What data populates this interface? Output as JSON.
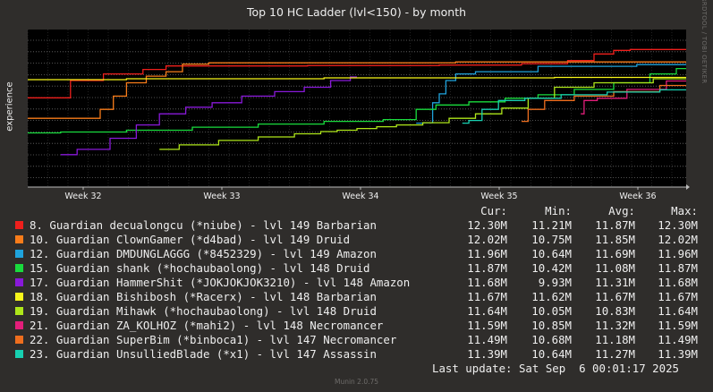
{
  "chart_data": {
    "type": "line",
    "title": "Top 10 HC Ladder (lvl<150) - by month",
    "ylabel": "experience",
    "side_label": "RRDTOOL / TOBI OETIKER",
    "x_ticks": [
      "Week 32",
      "Week 33",
      "Week 34",
      "Week 35",
      "Week 36"
    ],
    "x_range": [
      0,
      1
    ],
    "y_range": [
      9.2,
      12.75
    ],
    "grid": true,
    "legend_position": "bottom",
    "legend_headers": [
      "Cur:",
      "Min:",
      "Avg:",
      "Max:"
    ],
    "series": [
      {
        "name": "8. Guardian decualongcu (*niube) - lvl 149 Barbarian",
        "color": "#ee1f1c",
        "cur": "12.30M",
        "min": "11.21M",
        "avg": "11.87M",
        "max": "12.30M",
        "points": [
          [
            0,
            11.21
          ],
          [
            0.05,
            11.21
          ],
          [
            0.08,
            11.6
          ],
          [
            0.1,
            11.6
          ],
          [
            0.13,
            11.75
          ],
          [
            0.16,
            11.75
          ],
          [
            0.19,
            11.85
          ],
          [
            0.23,
            11.93
          ],
          [
            0.3,
            11.93
          ],
          [
            0.55,
            11.94
          ],
          [
            0.7,
            11.95
          ],
          [
            0.8,
            11.98
          ],
          [
            0.84,
            12.05
          ],
          [
            0.88,
            12.2
          ],
          [
            0.9,
            12.28
          ],
          [
            0.93,
            12.3
          ],
          [
            1,
            12.3
          ]
        ]
      },
      {
        "name": "10. Guardian ClownGamer (*d4bad) - lvl 149 Druid",
        "color": "#f87c1a",
        "cur": "12.02M",
        "min": "10.75M",
        "avg": "11.85M",
        "max": "12.02M",
        "points": [
          [
            0,
            10.75
          ],
          [
            0.1,
            10.75
          ],
          [
            0.12,
            10.95
          ],
          [
            0.14,
            11.25
          ],
          [
            0.16,
            11.55
          ],
          [
            0.2,
            11.7
          ],
          [
            0.22,
            11.8
          ],
          [
            0.25,
            11.97
          ],
          [
            0.3,
            12.0
          ],
          [
            1,
            12.02
          ]
        ]
      },
      {
        "name": "12. Guardian DMDUNGLAGGG (*8452329) - lvl 149 Amazon",
        "color": "#1fa3dc",
        "cur": "11.96M",
        "min": "10.64M",
        "avg": "11.69M",
        "max": "11.96M",
        "points": [
          [
            0.59,
            10.64
          ],
          [
            0.61,
            10.65
          ],
          [
            0.62,
            11.1
          ],
          [
            0.63,
            11.3
          ],
          [
            0.64,
            11.6
          ],
          [
            0.66,
            11.75
          ],
          [
            0.7,
            11.8
          ],
          [
            0.85,
            11.92
          ],
          [
            1,
            11.96
          ]
        ]
      },
      {
        "name": "15. Guardian shank (*hochaubaolong) - lvl 148 Druid",
        "color": "#19db3d",
        "cur": "11.87M",
        "min": "10.42M",
        "avg": "11.08M",
        "max": "11.87M",
        "points": [
          [
            0,
            10.42
          ],
          [
            0.1,
            10.44
          ],
          [
            0.2,
            10.48
          ],
          [
            0.3,
            10.55
          ],
          [
            0.4,
            10.62
          ],
          [
            0.5,
            10.68
          ],
          [
            0.58,
            10.72
          ],
          [
            0.6,
            10.95
          ],
          [
            0.64,
            11.05
          ],
          [
            0.7,
            11.12
          ],
          [
            0.75,
            11.2
          ],
          [
            0.8,
            11.28
          ],
          [
            0.86,
            11.4
          ],
          [
            0.92,
            11.55
          ],
          [
            0.97,
            11.75
          ],
          [
            1,
            11.87
          ]
        ]
      },
      {
        "name": "17. Guardian HammerShit (*JOKJOKJOK3210) - lvl 148 Amazon",
        "color": "#8919d9",
        "cur": "11.68M",
        "min": "9.93M",
        "avg": "11.31M",
        "max": "11.68M",
        "points": [
          [
            0.05,
            9.93
          ],
          [
            0.1,
            10.05
          ],
          [
            0.15,
            10.3
          ],
          [
            0.18,
            10.6
          ],
          [
            0.22,
            10.85
          ],
          [
            0.26,
            11.0
          ],
          [
            0.3,
            11.1
          ],
          [
            0.35,
            11.25
          ],
          [
            0.4,
            11.35
          ],
          [
            0.44,
            11.45
          ],
          [
            0.48,
            11.6
          ],
          [
            0.5,
            11.68
          ]
        ]
      },
      {
        "name": "18. Guardian Bishibosh (*Racerx) - lvl 148 Barbarian",
        "color": "#f7f51b",
        "cur": "11.67M",
        "min": "11.62M",
        "avg": "11.67M",
        "max": "11.67M",
        "points": [
          [
            0,
            11.62
          ],
          [
            0.3,
            11.64
          ],
          [
            0.6,
            11.66
          ],
          [
            1,
            11.67
          ]
        ]
      },
      {
        "name": "19. Guardian Mihawk (*hochaubaolong) - lvl 148 Druid",
        "color": "#aee61a",
        "cur": "11.64M",
        "min": "10.05M",
        "avg": "10.83M",
        "max": "11.64M",
        "points": [
          [
            0.2,
            10.05
          ],
          [
            0.26,
            10.15
          ],
          [
            0.32,
            10.25
          ],
          [
            0.38,
            10.33
          ],
          [
            0.43,
            10.4
          ],
          [
            0.46,
            10.45
          ],
          [
            0.48,
            10.48
          ],
          [
            0.52,
            10.52
          ],
          [
            0.54,
            10.56
          ],
          [
            0.58,
            10.6
          ],
          [
            0.62,
            10.65
          ],
          [
            0.66,
            10.75
          ],
          [
            0.7,
            10.85
          ],
          [
            0.74,
            10.98
          ],
          [
            0.78,
            11.2
          ],
          [
            0.82,
            11.45
          ],
          [
            0.9,
            11.55
          ],
          [
            1,
            11.64
          ]
        ]
      },
      {
        "name": "21. Guardian ZA_KOLHOZ (*mahi2) - lvl 148 Necromancer",
        "color": "#e31e7a",
        "cur": "11.59M",
        "min": "10.85M",
        "avg": "11.32M",
        "max": "11.59M",
        "points": [
          [
            0.84,
            10.85
          ],
          [
            0.85,
            11.15
          ],
          [
            0.88,
            11.2
          ],
          [
            0.94,
            11.4
          ],
          [
            1,
            11.59
          ]
        ]
      },
      {
        "name": "22. Guardian SuperBim (*binboca1) - lvl 147 Necromancer",
        "color": "#ee6e1e",
        "cur": "11.49M",
        "min": "10.68M",
        "avg": "11.18M",
        "max": "11.49M",
        "points": [
          [
            0.75,
            10.68
          ],
          [
            0.77,
            10.95
          ],
          [
            0.8,
            11.15
          ],
          [
            0.86,
            11.25
          ],
          [
            0.92,
            11.35
          ],
          [
            1,
            11.49
          ]
        ]
      },
      {
        "name": "23. Guardian UnsulliedBlade (*x1) - lvl 147 Assassin",
        "color": "#17d0b1",
        "cur": "11.39M",
        "min": "10.64M",
        "avg": "11.27M",
        "max": "11.39M",
        "points": [
          [
            0.66,
            10.64
          ],
          [
            0.68,
            10.7
          ],
          [
            0.7,
            10.95
          ],
          [
            0.73,
            11.15
          ],
          [
            0.78,
            11.2
          ],
          [
            0.84,
            11.28
          ],
          [
            0.92,
            11.34
          ],
          [
            1,
            11.39
          ]
        ]
      }
    ],
    "last_update": "Last update: Sat Sep  6 00:01:17 2025",
    "footer": "Munin 2.0.75"
  }
}
